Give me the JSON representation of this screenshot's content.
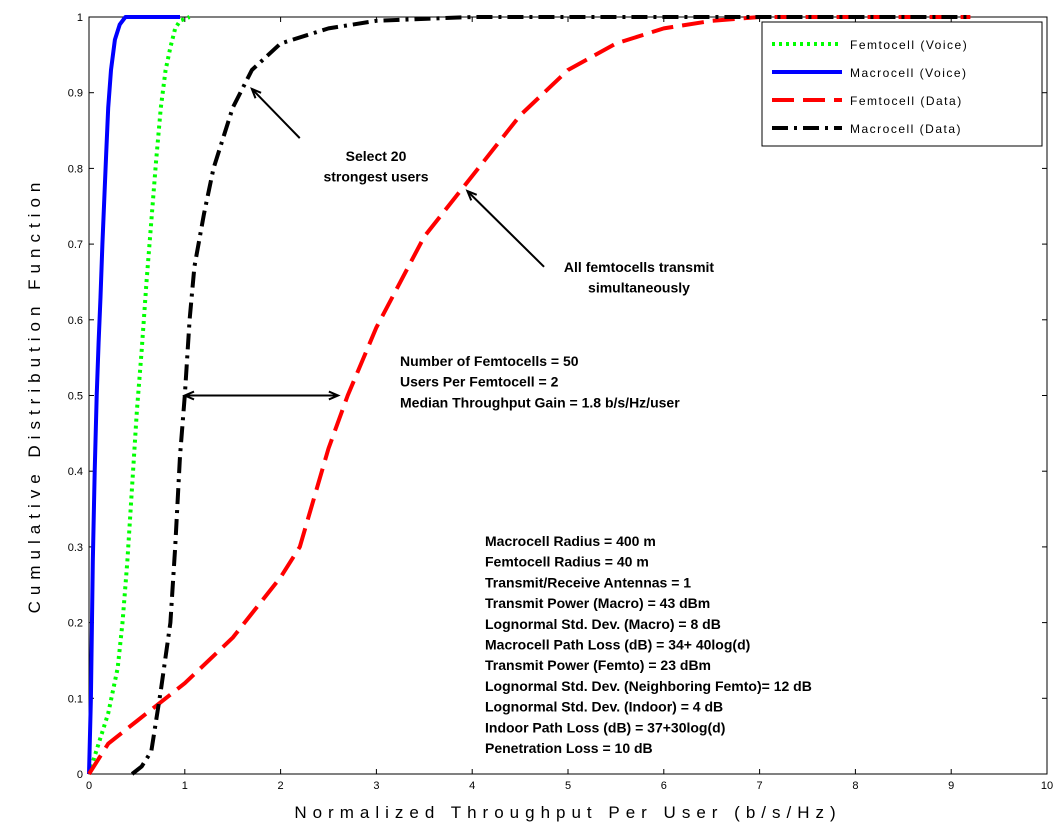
{
  "chart_data": {
    "type": "line",
    "xlabel": "Normalized Throughput Per User (b/s/Hz)",
    "ylabel": "Cumulative Distribution Function",
    "xlim": [
      0,
      10
    ],
    "ylim": [
      0,
      1
    ],
    "xticks": [
      "0",
      "1",
      "2",
      "3",
      "4",
      "5",
      "6",
      "7",
      "8",
      "9",
      "10"
    ],
    "yticks": [
      "0",
      "0.1",
      "0.2",
      "0.3",
      "0.4",
      "0.5",
      "0.6",
      "0.7",
      "0.8",
      "0.9",
      "1"
    ],
    "grid": false,
    "legend_position": "top-right",
    "series": [
      {
        "name": "Femtocell (Voice)",
        "color": "#00ff00",
        "style": "dotted",
        "points": [
          [
            0,
            0
          ],
          [
            0.1,
            0.04
          ],
          [
            0.2,
            0.08
          ],
          [
            0.3,
            0.14
          ],
          [
            0.35,
            0.2
          ],
          [
            0.4,
            0.28
          ],
          [
            0.45,
            0.38
          ],
          [
            0.5,
            0.48
          ],
          [
            0.55,
            0.56
          ],
          [
            0.6,
            0.65
          ],
          [
            0.65,
            0.73
          ],
          [
            0.7,
            0.81
          ],
          [
            0.75,
            0.88
          ],
          [
            0.8,
            0.93
          ],
          [
            0.85,
            0.96
          ],
          [
            0.9,
            0.985
          ],
          [
            0.95,
            0.995
          ],
          [
            1.05,
            1
          ]
        ]
      },
      {
        "name": "Macrocell (Voice)",
        "color": "#0000ff",
        "style": "solid",
        "points": [
          [
            0,
            0
          ],
          [
            0.02,
            0.1
          ],
          [
            0.04,
            0.28
          ],
          [
            0.06,
            0.4
          ],
          [
            0.08,
            0.5
          ],
          [
            0.1,
            0.57
          ],
          [
            0.12,
            0.63
          ],
          [
            0.14,
            0.7
          ],
          [
            0.16,
            0.76
          ],
          [
            0.18,
            0.82
          ],
          [
            0.2,
            0.88
          ],
          [
            0.23,
            0.93
          ],
          [
            0.27,
            0.97
          ],
          [
            0.32,
            0.99
          ],
          [
            0.38,
            1
          ],
          [
            0.95,
            1
          ]
        ]
      },
      {
        "name": "Femtocell (Data)",
        "color": "#ff0000",
        "style": "dashed",
        "points": [
          [
            0,
            0
          ],
          [
            0.2,
            0.04
          ],
          [
            0.5,
            0.07
          ],
          [
            1,
            0.12
          ],
          [
            1.5,
            0.18
          ],
          [
            2,
            0.26
          ],
          [
            2.2,
            0.3
          ],
          [
            2.5,
            0.43
          ],
          [
            2.7,
            0.5
          ],
          [
            3,
            0.59
          ],
          [
            3.5,
            0.71
          ],
          [
            4,
            0.79
          ],
          [
            4.5,
            0.87
          ],
          [
            5,
            0.93
          ],
          [
            5.5,
            0.965
          ],
          [
            6,
            0.985
          ],
          [
            6.5,
            0.995
          ],
          [
            7,
            1
          ],
          [
            9.2,
            1
          ]
        ]
      },
      {
        "name": "Macrocell (Data)",
        "color": "#000000",
        "style": "dashdot",
        "points": [
          [
            0.45,
            0
          ],
          [
            0.55,
            0.01
          ],
          [
            0.65,
            0.03
          ],
          [
            0.75,
            0.11
          ],
          [
            0.85,
            0.2
          ],
          [
            0.9,
            0.3
          ],
          [
            0.95,
            0.42
          ],
          [
            1.0,
            0.5
          ],
          [
            1.05,
            0.6
          ],
          [
            1.1,
            0.67
          ],
          [
            1.2,
            0.74
          ],
          [
            1.3,
            0.8
          ],
          [
            1.5,
            0.88
          ],
          [
            1.7,
            0.93
          ],
          [
            2,
            0.965
          ],
          [
            2.5,
            0.985
          ],
          [
            3,
            0.995
          ],
          [
            4,
            1
          ],
          [
            9.2,
            1
          ]
        ]
      }
    ],
    "annotations": [
      {
        "lines": [
          "Select 20",
          "strongest users"
        ]
      },
      {
        "lines": [
          "All femtocells transmit",
          "simultaneously"
        ]
      },
      {
        "lines": [
          "Number of Femtocells = 50",
          "Users Per Femtocell = 2",
          "Median Throughput Gain = 1.8 b/s/Hz/user"
        ]
      },
      {
        "lines": [
          "Macrocell Radius = 400 m",
          "Femtocell Radius = 40 m",
          "Transmit/Receive Antennas = 1",
          "Transmit Power (Macro) = 43 dBm",
          "Lognormal Std. Dev. (Macro) = 8 dB",
          "Macrocell Path Loss (dB) = 34+ 40log(d)",
          "Transmit Power (Femto) = 23 dBm",
          "Lognormal Std. Dev. (Neighboring Femto)= 12 dB",
          "Lognormal Std. Dev. (Indoor) = 4 dB",
          "Indoor Path Loss (dB) = 37+30log(d)",
          "Penetration Loss = 10 dB"
        ]
      }
    ]
  }
}
